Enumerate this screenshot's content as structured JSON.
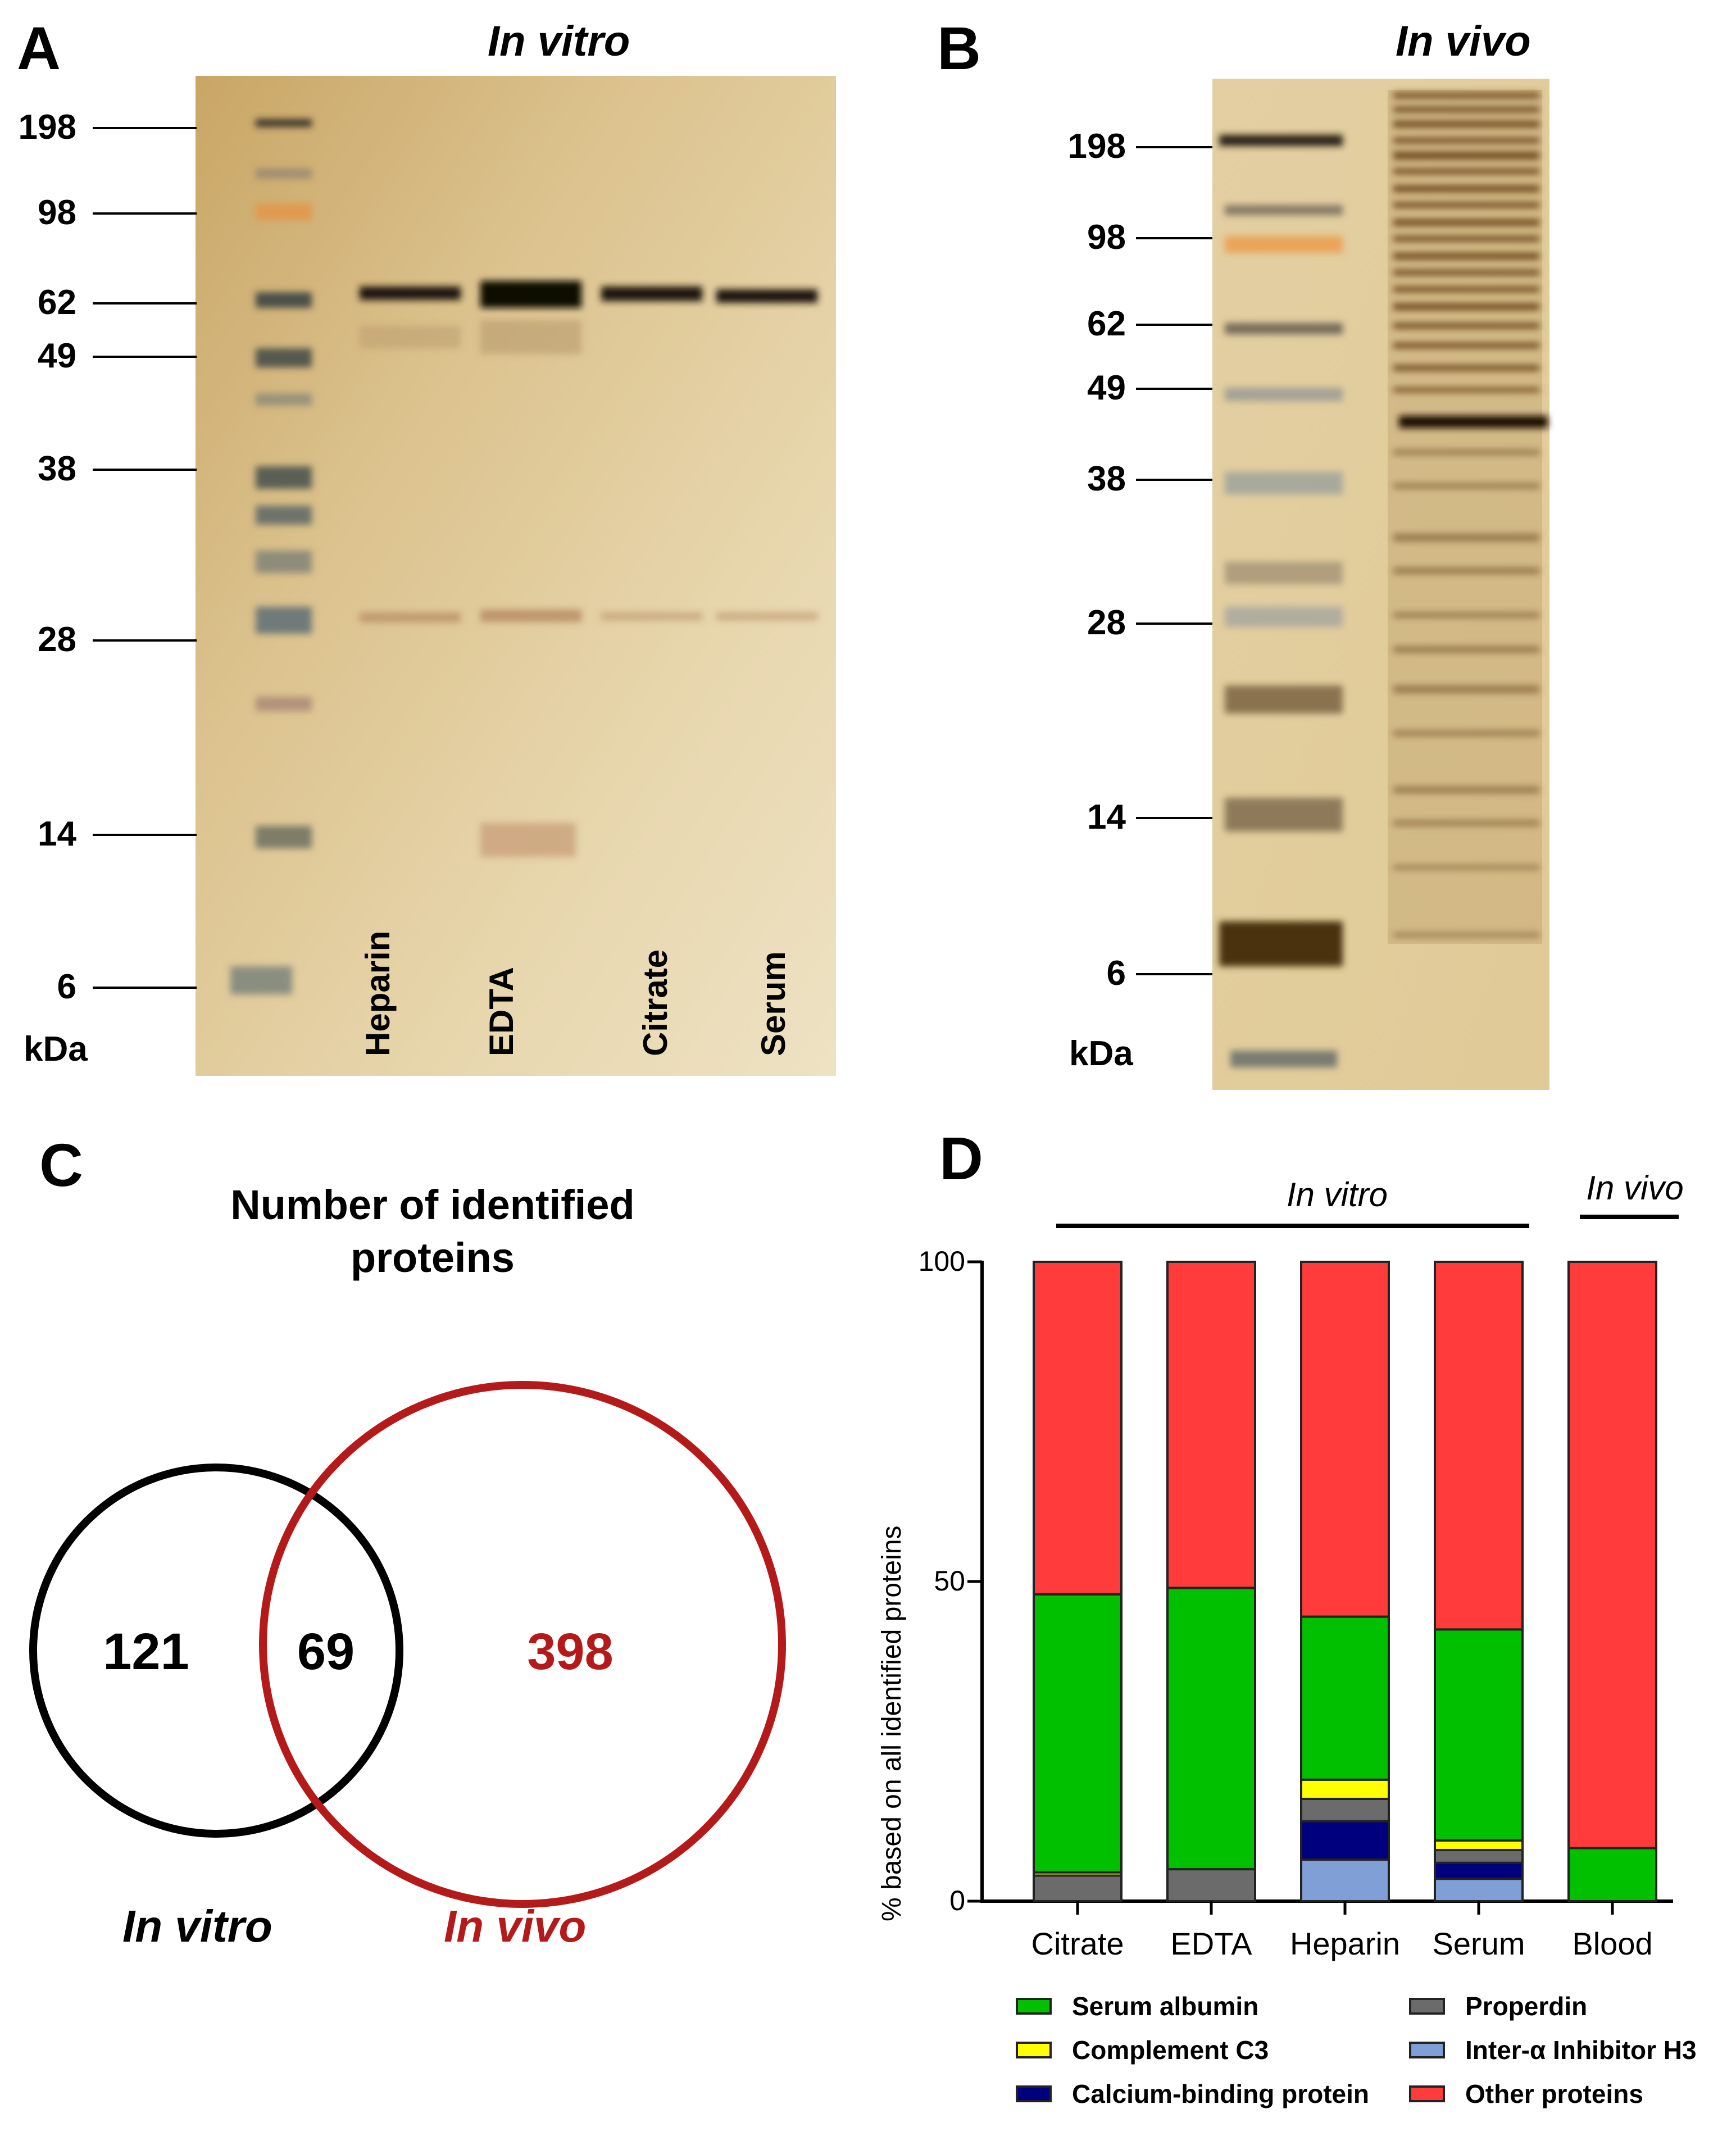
{
  "panel_a": {
    "letter": "A",
    "title": "In vitro",
    "unit": "kDa",
    "markers": [
      "198",
      "98",
      "62",
      "49",
      "38",
      "28",
      "14",
      "6"
    ],
    "lanes": [
      "Heparin",
      "EDTA",
      "Citrate",
      "Serum"
    ]
  },
  "panel_b": {
    "letter": "B",
    "title": "In vivo",
    "unit": "kDa",
    "markers": [
      "198",
      "98",
      "62",
      "49",
      "38",
      "28",
      "14",
      "6"
    ]
  },
  "panel_c": {
    "letter": "C",
    "title_line1": "Number of identified",
    "title_line2": "proteins",
    "left_only": "121",
    "overlap": "69",
    "right_only": "398",
    "left_label": "In vitro",
    "right_label": "In vivo",
    "colors": {
      "left": "#000000",
      "right": "#b51a1a"
    }
  },
  "panel_d": {
    "letter": "D",
    "group_labels": [
      "In vitro",
      "In vivo"
    ]
  },
  "chart_data": {
    "type": "bar",
    "stacked": true,
    "title": "",
    "xlabel": "",
    "ylabel": "% based on all identified proteins",
    "ylim": [
      0,
      100
    ],
    "yticks": [
      0,
      50,
      100
    ],
    "categories": [
      "Citrate",
      "EDTA",
      "Heparin",
      "Serum",
      "Blood"
    ],
    "series": [
      {
        "name": "Inter-α Inhibitor H3",
        "color": "#7f9fd6",
        "values": [
          0,
          0,
          6.5,
          3.5,
          0
        ]
      },
      {
        "name": "Calcium-binding protein",
        "color": "#00007e",
        "values": [
          0,
          0,
          6,
          2.5,
          0
        ]
      },
      {
        "name": "Properdin",
        "color": "#6b6b6b",
        "values": [
          4,
          5,
          3.5,
          2,
          0
        ]
      },
      {
        "name": "Complement C3",
        "color": "#ffff00",
        "values": [
          0.5,
          0,
          3,
          1.5,
          0
        ]
      },
      {
        "name": "Serum albumin",
        "color": "#00c000",
        "values": [
          43.5,
          44,
          25.5,
          33,
          8.3
        ]
      },
      {
        "name": "Other proteins",
        "color": "#ff3b3b",
        "values": [
          52,
          51,
          55.5,
          57.5,
          91.7
        ]
      }
    ],
    "legend": {
      "position": "bottom",
      "order": [
        "Serum albumin",
        "Properdin",
        "Complement C3",
        "Inter-α Inhibitor H3",
        "Calcium-binding protein",
        "Other proteins"
      ]
    },
    "grid": false
  }
}
